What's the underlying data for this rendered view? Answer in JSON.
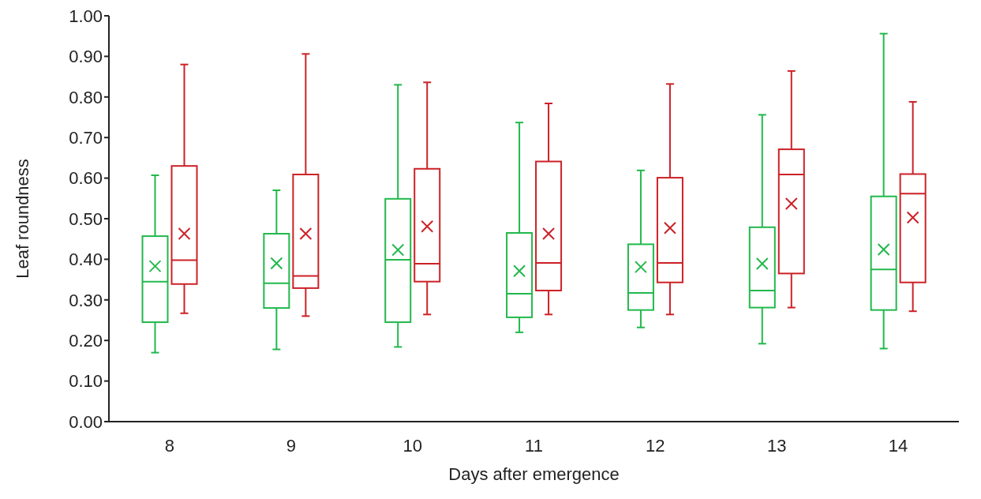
{
  "chart_data": {
    "type": "box",
    "xlabel": "Days after emergence",
    "ylabel": "Leaf roundness",
    "categories": [
      "8",
      "9",
      "10",
      "11",
      "12",
      "13",
      "14"
    ],
    "ylim": [
      0,
      1
    ],
    "yticks": [
      {
        "value": 0,
        "label": "0.00"
      },
      {
        "value": 0.1,
        "label": "0.10"
      },
      {
        "value": 0.2,
        "label": "0.20"
      },
      {
        "value": 0.3,
        "label": "0.30"
      },
      {
        "value": 0.4,
        "label": "0.40"
      },
      {
        "value": 0.5,
        "label": "0.50"
      },
      {
        "value": 0.6,
        "label": "0.60"
      },
      {
        "value": 0.7,
        "label": "0.70"
      },
      {
        "value": 0.8,
        "label": "0.80"
      },
      {
        "value": 0.9,
        "label": "0.90"
      },
      {
        "value": 1,
        "label": "1.00"
      }
    ],
    "grid": false,
    "marker": "cross",
    "series": [
      {
        "color": "#22b84c",
        "boxes": [
          {
            "low": 0.17,
            "q1": 0.245,
            "median": 0.345,
            "q3": 0.457,
            "high": 0.607,
            "mean": 0.383
          },
          {
            "low": 0.178,
            "q1": 0.28,
            "median": 0.341,
            "q3": 0.463,
            "high": 0.57,
            "mean": 0.39
          },
          {
            "low": 0.184,
            "q1": 0.245,
            "median": 0.399,
            "q3": 0.549,
            "high": 0.83,
            "mean": 0.423
          },
          {
            "low": 0.22,
            "q1": 0.257,
            "median": 0.315,
            "q3": 0.465,
            "high": 0.737,
            "mean": 0.371
          },
          {
            "low": 0.232,
            "q1": 0.275,
            "median": 0.317,
            "q3": 0.437,
            "high": 0.619,
            "mean": 0.381
          },
          {
            "low": 0.192,
            "q1": 0.281,
            "median": 0.323,
            "q3": 0.479,
            "high": 0.756,
            "mean": 0.389
          },
          {
            "low": 0.18,
            "q1": 0.275,
            "median": 0.375,
            "q3": 0.555,
            "high": 0.956,
            "mean": 0.424
          }
        ]
      },
      {
        "color": "#cc2127",
        "boxes": [
          {
            "low": 0.267,
            "q1": 0.339,
            "median": 0.398,
            "q3": 0.63,
            "high": 0.88,
            "mean": 0.463
          },
          {
            "low": 0.26,
            "q1": 0.329,
            "median": 0.359,
            "q3": 0.609,
            "high": 0.906,
            "mean": 0.463
          },
          {
            "low": 0.264,
            "q1": 0.345,
            "median": 0.389,
            "q3": 0.623,
            "high": 0.836,
            "mean": 0.481
          },
          {
            "low": 0.264,
            "q1": 0.323,
            "median": 0.391,
            "q3": 0.641,
            "high": 0.784,
            "mean": 0.463
          },
          {
            "low": 0.264,
            "q1": 0.343,
            "median": 0.391,
            "q3": 0.601,
            "high": 0.832,
            "mean": 0.477
          },
          {
            "low": 0.281,
            "q1": 0.365,
            "median": 0.609,
            "q3": 0.671,
            "high": 0.864,
            "mean": 0.537
          },
          {
            "low": 0.272,
            "q1": 0.343,
            "median": 0.562,
            "q3": 0.61,
            "high": 0.788,
            "mean": 0.503
          }
        ]
      }
    ]
  }
}
